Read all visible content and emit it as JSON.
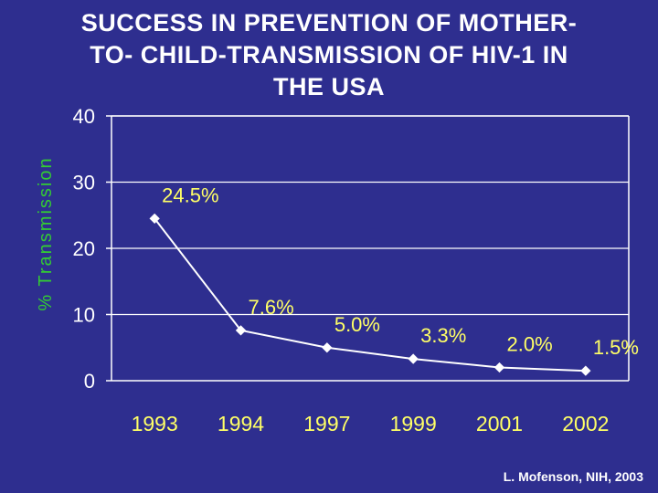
{
  "slide": {
    "title_lines": [
      "SUCCESS IN PREVENTION OF MOTHER-",
      "TO- CHILD-TRANSMISSION OF HIV-1 IN",
      "THE USA"
    ],
    "credit": "L. Mofenson, NIH, 2003"
  },
  "colors": {
    "background": "#2e2e8f",
    "title": "#ffffff",
    "ylabel": "#33cc33",
    "ticks": "#ffffff",
    "data_labels": "#ffff66",
    "x_labels": "#ffff66",
    "line": "#ffffff"
  },
  "chart_data": {
    "type": "line",
    "title": "SUCCESS IN PREVENTION OF MOTHER- TO- CHILD-TRANSMISSION OF HIV-1 IN THE USA",
    "xlabel": "",
    "ylabel": "% Transmission",
    "categories": [
      "1993",
      "1994",
      "1997",
      "1999",
      "2001",
      "2002"
    ],
    "values": [
      24.5,
      7.6,
      5.0,
      3.3,
      2.0,
      1.5
    ],
    "data_labels": [
      "24.5%",
      "7.6%",
      "5.0%",
      "3.3%",
      "2.0%",
      "1.5%"
    ],
    "ylim": [
      0,
      40
    ],
    "yticks": [
      0,
      10,
      20,
      30,
      40
    ],
    "ytick_labels": [
      "0",
      "10",
      "20",
      "30",
      "40"
    ],
    "grid": true
  }
}
